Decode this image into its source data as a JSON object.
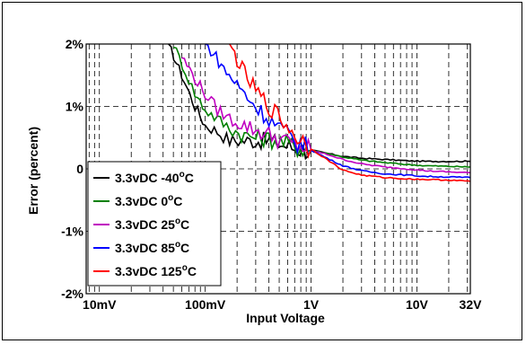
{
  "chart_data": {
    "type": "line",
    "title": "",
    "xlabel": "Input Voltage",
    "ylabel": "Error (percent)",
    "x_scale": "log",
    "x_unit": "V",
    "xlim": [
      0.0075,
      32
    ],
    "ylim": [
      -2,
      2
    ],
    "grid": true,
    "legend_position": "lower-left",
    "x_ticks": [
      {
        "value": 0.01,
        "label": "10mV"
      },
      {
        "value": 0.1,
        "label": "100mV"
      },
      {
        "value": 1,
        "label": "1V"
      },
      {
        "value": 10,
        "label": "10V"
      },
      {
        "value": 32,
        "label": "32V"
      }
    ],
    "y_ticks": [
      {
        "value": 2,
        "label": "2%"
      },
      {
        "value": 1,
        "label": "1%"
      },
      {
        "value": 0,
        "label": "0"
      },
      {
        "value": -1,
        "label": "-1%"
      },
      {
        "value": -2,
        "label": "-2%"
      }
    ],
    "series": [
      {
        "legend_prefix": "3.3vDC -40",
        "legend_sup": "o",
        "legend_suffix": "C",
        "color": "#000000",
        "x": [
          0.045,
          0.06,
          0.08,
          0.1,
          0.13,
          0.17,
          0.22,
          0.3,
          0.4,
          0.55,
          0.7,
          1.0,
          1.5,
          2,
          3,
          5,
          8,
          12,
          20,
          32
        ],
        "y": [
          2.0,
          1.5,
          1.0,
          0.7,
          0.6,
          0.45,
          0.45,
          0.45,
          0.45,
          0.38,
          0.33,
          0.3,
          0.24,
          0.2,
          0.17,
          0.15,
          0.13,
          0.12,
          0.12,
          0.12
        ]
      },
      {
        "legend_prefix": "3.3vDC 0",
        "legend_sup": "o",
        "legend_suffix": "C",
        "color": "#008000",
        "x": [
          0.05,
          0.065,
          0.08,
          0.1,
          0.13,
          0.17,
          0.22,
          0.3,
          0.4,
          0.55,
          0.7,
          1.0,
          1.5,
          2,
          3,
          5,
          8,
          12,
          20,
          32
        ],
        "y": [
          2.0,
          1.55,
          1.2,
          0.95,
          0.8,
          0.65,
          0.55,
          0.5,
          0.48,
          0.42,
          0.36,
          0.3,
          0.24,
          0.19,
          0.14,
          0.1,
          0.07,
          0.05,
          0.04,
          0.03
        ]
      },
      {
        "legend_prefix": "3.3vDC 25",
        "legend_sup": "o",
        "legend_suffix": "C",
        "color": "#c000c0",
        "x": [
          0.06,
          0.08,
          0.1,
          0.13,
          0.17,
          0.22,
          0.3,
          0.4,
          0.55,
          0.7,
          1.0,
          1.5,
          2,
          3,
          5,
          8,
          12,
          20,
          32
        ],
        "y": [
          1.8,
          1.45,
          1.2,
          0.95,
          0.8,
          0.72,
          0.62,
          0.55,
          0.45,
          0.38,
          0.3,
          0.22,
          0.15,
          0.08,
          0.03,
          0.0,
          -0.03,
          -0.05,
          -0.06
        ]
      },
      {
        "legend_prefix": "3.3vDC 85",
        "legend_sup": "o",
        "legend_suffix": "C",
        "color": "#0000ff",
        "x": [
          0.1,
          0.12,
          0.15,
          0.2,
          0.25,
          0.3,
          0.4,
          0.55,
          0.7,
          1.0,
          1.5,
          2,
          3,
          5,
          8,
          12,
          20,
          32
        ],
        "y": [
          2.0,
          1.85,
          1.6,
          1.35,
          1.15,
          1.0,
          0.8,
          0.6,
          0.45,
          0.3,
          0.15,
          0.05,
          -0.03,
          -0.08,
          -0.1,
          -0.12,
          -0.13,
          -0.14
        ]
      },
      {
        "legend_prefix": "3.3vDC 125",
        "legend_sup": "o",
        "legend_suffix": "C",
        "color": "#ff0000",
        "x": [
          0.17,
          0.2,
          0.25,
          0.3,
          0.4,
          0.55,
          0.7,
          1.0,
          1.5,
          2,
          3,
          5,
          8,
          12,
          20,
          32
        ],
        "y": [
          2.0,
          1.75,
          1.45,
          1.25,
          1.0,
          0.75,
          0.55,
          0.32,
          0.12,
          -0.02,
          -0.1,
          -0.14,
          -0.16,
          -0.17,
          -0.18,
          -0.2
        ]
      }
    ]
  }
}
